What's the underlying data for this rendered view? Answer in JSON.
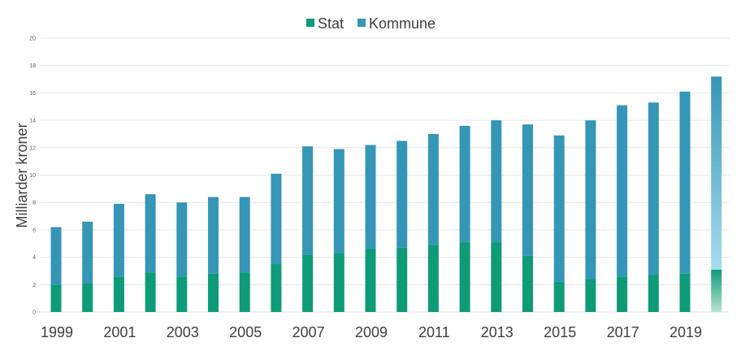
{
  "chart_data": {
    "type": "bar",
    "stacked": true,
    "ylabel": "Milliarder kroner",
    "xlabel": "",
    "ylim": [
      0,
      20
    ],
    "yticks": [
      "0",
      "2",
      "4",
      "6",
      "8",
      "10",
      "12",
      "14",
      "16",
      "18",
      "20"
    ],
    "x_tick_labels": [
      "1999",
      "2001",
      "2003",
      "2005",
      "2007",
      "2009",
      "2011",
      "2013",
      "2015",
      "2017",
      "2019"
    ],
    "categories": [
      "1999",
      "2000",
      "2001",
      "2002",
      "2003",
      "2004",
      "2005",
      "2006",
      "2007",
      "2008",
      "2009",
      "2010",
      "2011",
      "2012",
      "2013",
      "2014",
      "2015",
      "2016",
      "2017",
      "2018",
      "2019",
      "2020"
    ],
    "legend_position": "top-center",
    "grid": true,
    "series": [
      {
        "name": "Stat",
        "color": "#0d9b78",
        "values": [
          2.0,
          2.1,
          2.6,
          2.9,
          2.6,
          2.8,
          2.9,
          3.5,
          4.2,
          4.3,
          4.6,
          4.7,
          4.9,
          5.1,
          5.1,
          4.1,
          2.2,
          2.4,
          2.6,
          2.7,
          2.8,
          3.1
        ]
      },
      {
        "name": "Kommune",
        "color": "#3596b7",
        "values": [
          4.2,
          4.5,
          5.3,
          5.7,
          5.4,
          5.6,
          5.5,
          6.6,
          7.9,
          7.6,
          7.6,
          7.8,
          8.1,
          8.5,
          8.9,
          9.6,
          10.7,
          11.6,
          12.5,
          12.6,
          13.3,
          14.1
        ]
      }
    ]
  }
}
